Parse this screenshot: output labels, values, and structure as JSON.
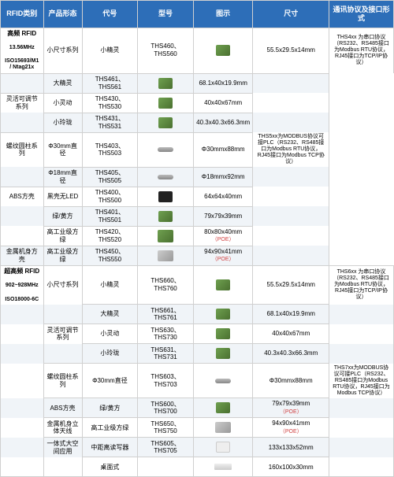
{
  "headers": [
    "RFID类别",
    "产品形态",
    "代号",
    "型号",
    "图示",
    "尺寸",
    "通讯协议及接口形式"
  ],
  "cat1": {
    "title": "高频 RFID",
    "sub1": "13.56MHz",
    "sub2": "ISO15693/M1",
    "sub3": "/ Ntag21x"
  },
  "cat2": {
    "title": "超高频 RFID",
    "sub1": "902~928MHz",
    "sub2": "ISO18000-6C"
  },
  "groups": {
    "g1": "小尺寸系列",
    "g2": "灵活可调节系列",
    "g3": "螺纹圆柱系列",
    "g4": "ABS方壳",
    "g5": "金属机身方壳",
    "g6": "小尺寸系列",
    "g7": "灵活可调节系列",
    "g8": "螺纹圆柱系列",
    "g9": "ABS方壳",
    "g10": "金属机身立体天线",
    "g11": "一体式大空间应用"
  },
  "rows": [
    {
      "code": "小精灵",
      "models": "THS460、THS560",
      "icon": "cube",
      "size": "55.5x29.5x14mm"
    },
    {
      "code": "大精灵",
      "models": "THS461、THS561",
      "icon": "cube",
      "size": "68.1x40x19.9mm"
    },
    {
      "code": "小灵动",
      "models": "THS430、THS530",
      "icon": "cube",
      "size": "40x40x67mm"
    },
    {
      "code": "小玲珑",
      "models": "THS431、THS531",
      "icon": "cube",
      "size": "40.3x40.3x66.3mm"
    },
    {
      "code": "Φ30mm直径",
      "models": "THS403、THS503",
      "icon": "cyl",
      "size": "Φ30mmx88mm"
    },
    {
      "code": "Φ18mm直径",
      "models": "THS405、THS505",
      "icon": "cyl",
      "size": "Φ18mmx92mm"
    },
    {
      "code": "黑壳无LED",
      "models": "THS400、THS500",
      "icon": "black",
      "size": "64x64x40mm"
    },
    {
      "code": "绿/黄方",
      "models": "THS401、THS501",
      "icon": "cube",
      "size": "79x79x39mm"
    },
    {
      "code": "高工业级方绿",
      "models": "THS420、THS520",
      "icon": "big",
      "size": "80x80x40mm",
      "poe": "（POE）"
    },
    {
      "code": "高工业级方绿",
      "models": "THS450、THS550",
      "icon": "metal",
      "size": "94x90x41mm",
      "poe": "（POE）"
    },
    {
      "code": "小精灵",
      "models": "THS660、THS760",
      "icon": "cube",
      "size": "55.5x29.5x14mm"
    },
    {
      "code": "大精灵",
      "models": "THS661、THS761",
      "icon": "cube",
      "size": "68.1x40x19.9mm"
    },
    {
      "code": "小灵动",
      "models": "THS630、THS730",
      "icon": "cube",
      "size": "40x40x67mm"
    },
    {
      "code": "小玲珑",
      "models": "THS631、THS731",
      "icon": "cube",
      "size": "40.3x40.3x66.3mm"
    },
    {
      "code": "Φ30mm直径",
      "models": "THS603、THS703",
      "icon": "cyl",
      "size": "Φ30mmx88mm"
    },
    {
      "code": "绿/黄方",
      "models": "THS600、THS700",
      "icon": "cube",
      "size": "79x79x39mm",
      "poe": "（POE）"
    },
    {
      "code": "高工业级方绿",
      "models": "THS650、THS750",
      "icon": "metal",
      "size": "94x90x41mm",
      "poe": "（POE）"
    },
    {
      "code": "中距离读写器",
      "models": "THS605、THS705",
      "icon": "white",
      "size": "133x133x52mm"
    },
    {
      "code": "桌面式",
      "models": "",
      "icon": "flat",
      "size": "160x100x30mm"
    }
  ],
  "comm": {
    "c1": "THS4xx 为串口协议（RS232、RS485接口为Modbus RTU协议，RJ45接口为TCP/IP协议）",
    "c2": "THS5xx为MODBUS协议可接PLC（RS232、RS485接口为Modbus RTU协议，RJ45接口为Modbus TCP协议）",
    "c3": "THS6xx 为串口协议（RS232、RS485接口为Modbus RTU协议，RJ45接口为TCP/IP协议）",
    "c4": "THS7xx为MODBUS协议可接PLC（RS232、RS485接口为Modbus RTU协议，RJ45接口为Modbus TCP协议）"
  },
  "colors": {
    "header": "#2d6eb8",
    "border": "#d0d0d0",
    "alt": "#f0f4f8",
    "poe": "#d04040"
  }
}
